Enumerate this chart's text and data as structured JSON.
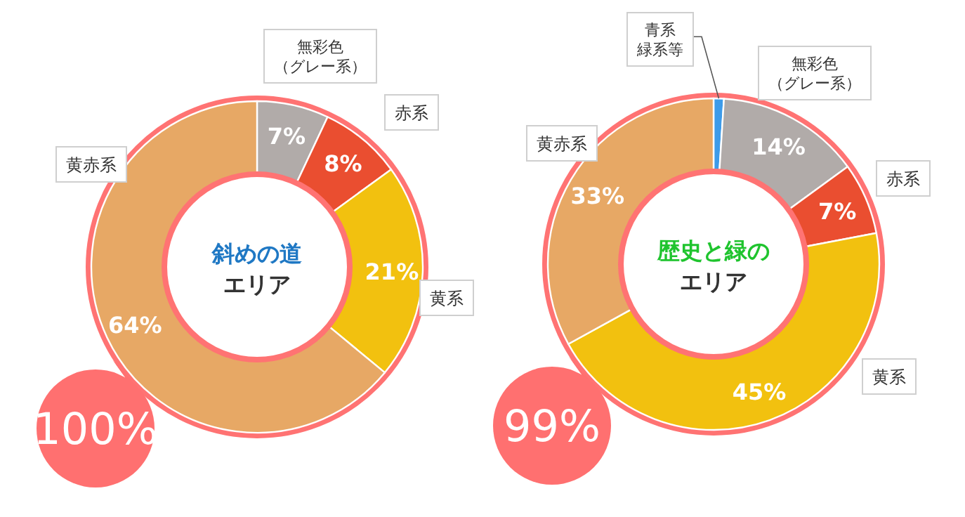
{
  "chart_data": [
    {
      "type": "donut",
      "title": "斜めの道",
      "subtitle": "エリア",
      "categories": [
        "無彩色（グレー系）",
        "赤系",
        "黄系",
        "黄赤系"
      ],
      "values": [
        7,
        8,
        21,
        64
      ],
      "colors": [
        "#b1aba9",
        "#ea4e30",
        "#f2c10f",
        "#e7a865"
      ],
      "value_labels": [
        "7%",
        "8%",
        "21%",
        "64%"
      ],
      "annotations": [
        "100%"
      ]
    },
    {
      "type": "donut",
      "title": "歴史と緑の",
      "subtitle": "エリア",
      "categories": [
        "青系緑系等",
        "無彩色（グレー系）",
        "赤系",
        "黄系",
        "黄赤系"
      ],
      "values": [
        1,
        14,
        7,
        45,
        33
      ],
      "colors": [
        "#3d9be9",
        "#b1aba9",
        "#ea4e30",
        "#f2c10f",
        "#e7a865"
      ],
      "value_labels": [
        null,
        "14%",
        "7%",
        "45%",
        "33%"
      ],
      "annotations": [
        "99%"
      ]
    }
  ]
}
